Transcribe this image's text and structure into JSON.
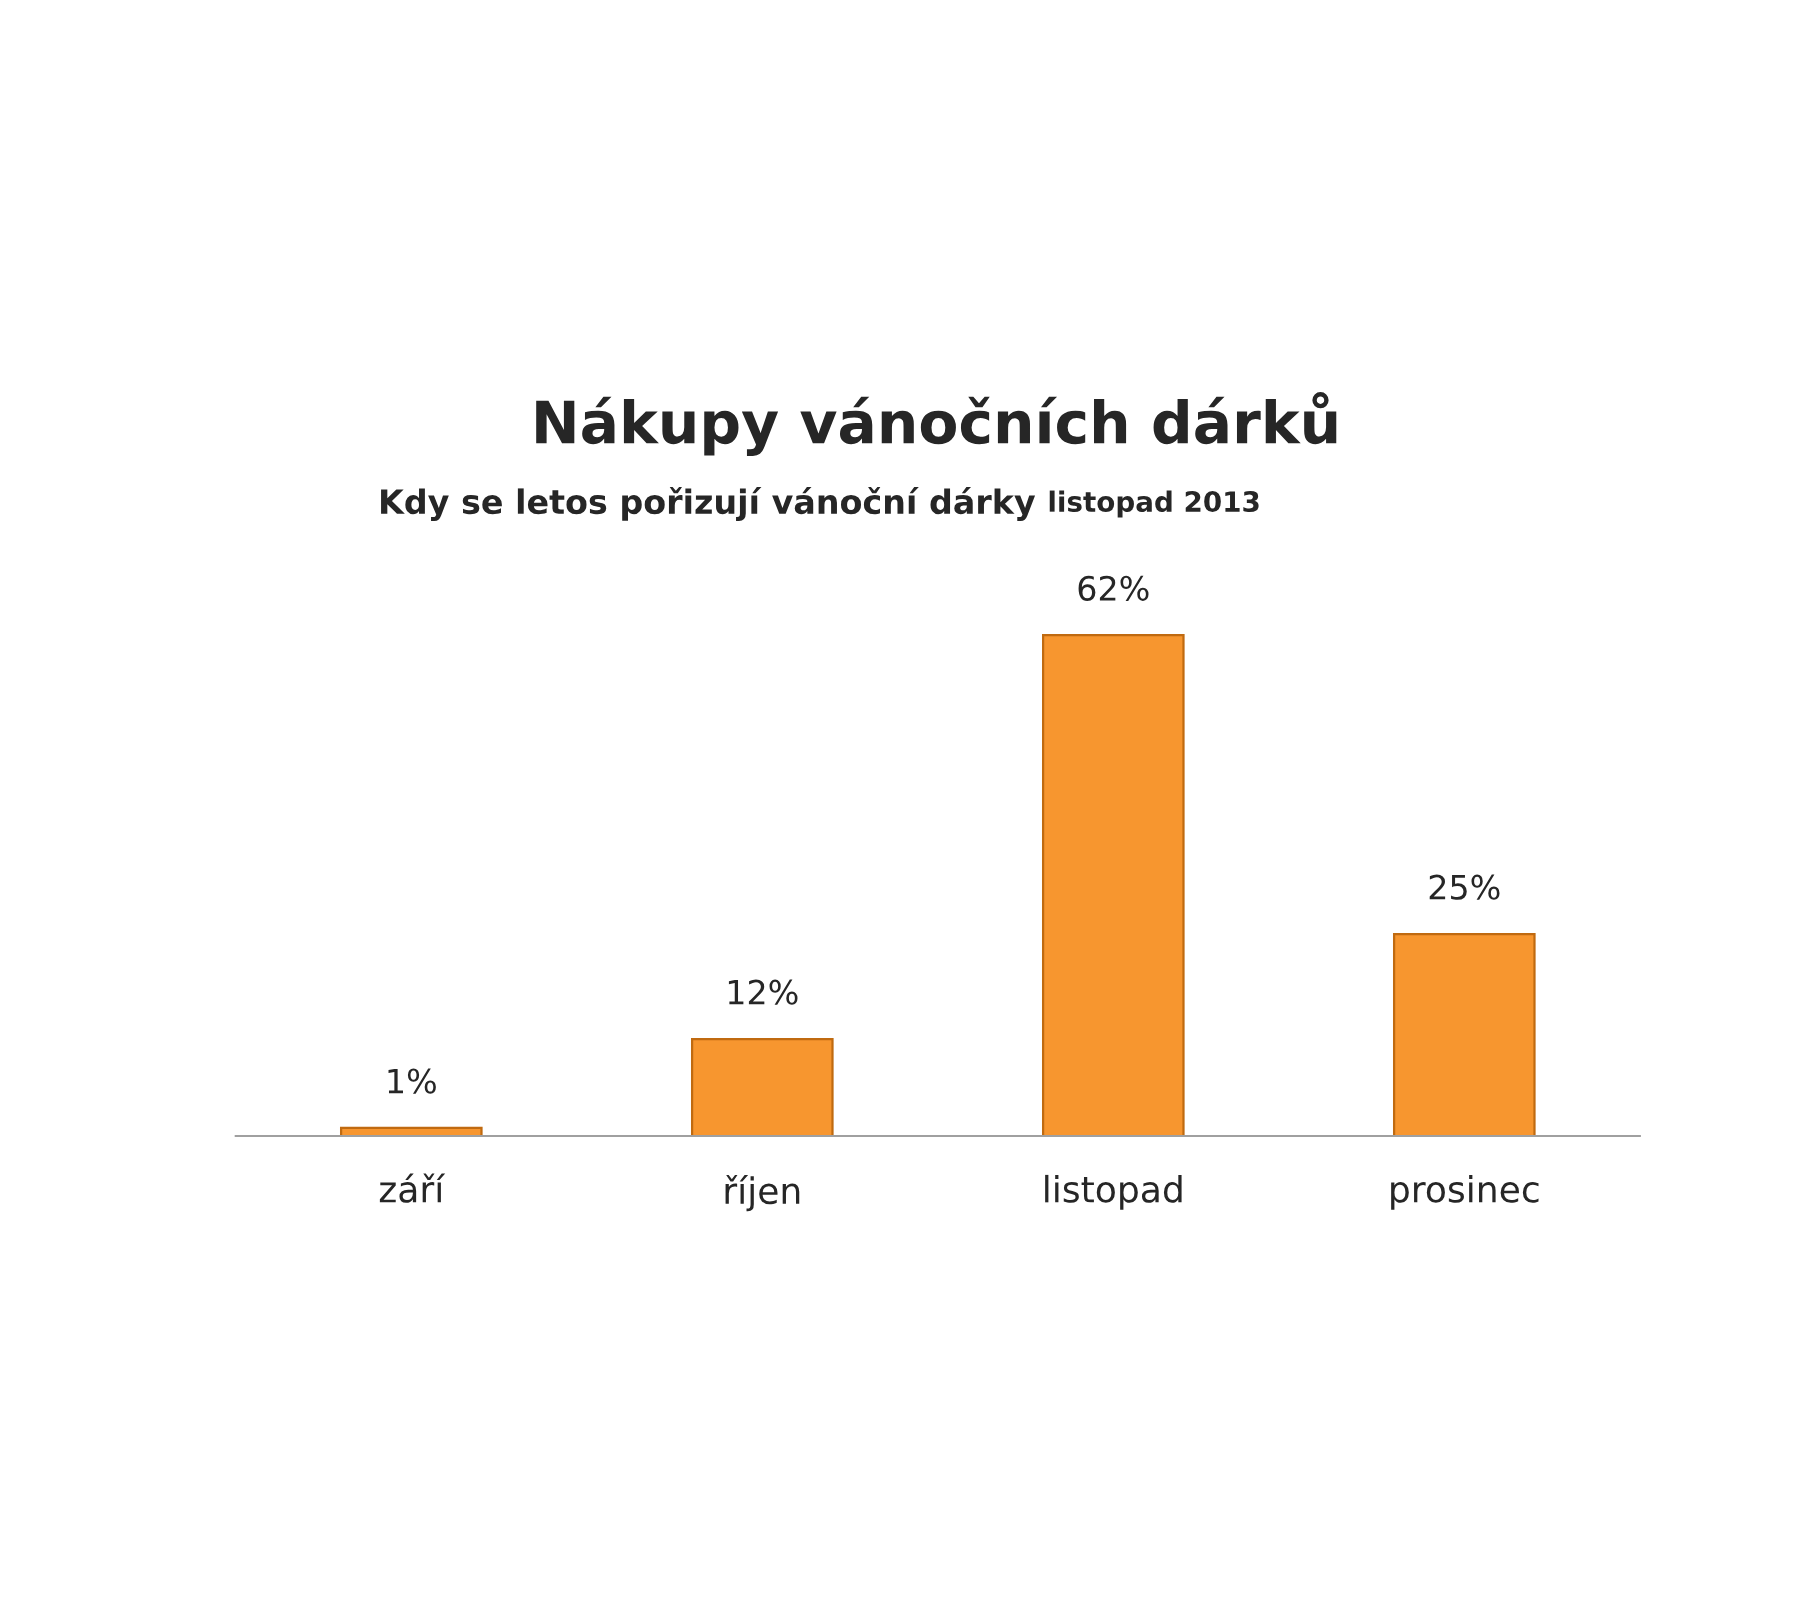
{
  "chart_data": {
    "type": "bar",
    "title": "Nákupy vánočních dárků",
    "subtitle": "Kdy se letos pořizují vánoční dárky",
    "annotations": [
      "listopad 2013"
    ],
    "categories": [
      "září",
      "říjen",
      "listopad",
      "prosinec"
    ],
    "values": [
      1,
      12,
      62,
      25
    ],
    "value_labels": [
      "1%",
      "12%",
      "62%",
      "25%"
    ],
    "color": "#f7962f",
    "grid": false,
    "legend": false
  }
}
